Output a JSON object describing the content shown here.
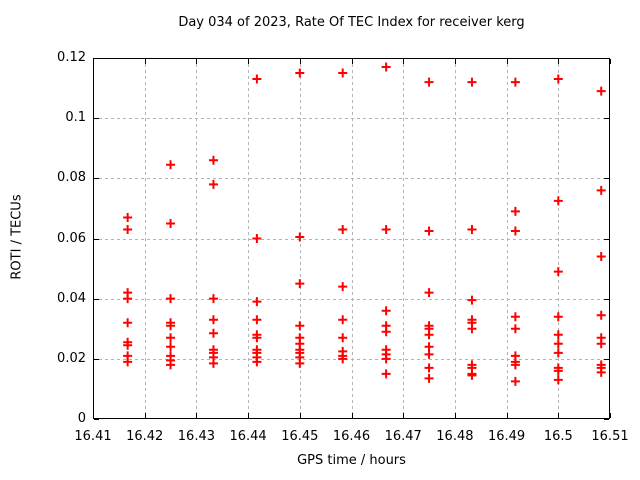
{
  "chart_data": {
    "type": "scatter",
    "title": "Day 034 of 2023, Rate Of TEC Index for receiver kerg",
    "xlabel": "GPS time / hours",
    "ylabel": "ROTI / TECUs",
    "xlim": [
      16.41,
      16.51
    ],
    "ylim": [
      0,
      0.12
    ],
    "xticks": [
      16.41,
      16.42,
      16.43,
      16.44,
      16.45,
      16.46,
      16.47,
      16.48,
      16.49,
      16.5,
      16.51
    ],
    "xtick_labels": [
      "16.41",
      "16.42",
      "16.43",
      "16.44",
      "16.45",
      "16.46",
      "16.47",
      "16.48",
      "16.49",
      "16.5",
      "16.51"
    ],
    "yticks": [
      0,
      0.02,
      0.04,
      0.06,
      0.08,
      0.1,
      0.12
    ],
    "ytick_labels": [
      "0",
      "0.02",
      "0.04",
      "0.06",
      "0.08",
      "0.1",
      "0.12"
    ],
    "grid": true,
    "legend": false,
    "marker": {
      "shape": "plus",
      "color": "#ff0000",
      "size": 9
    },
    "series": [
      {
        "name": "ROTI",
        "points": [
          {
            "x": 16.4167,
            "ys": [
              0.067,
              0.063,
              0.042,
              0.04,
              0.032,
              0.0255,
              0.0245,
              0.021,
              0.019
            ]
          },
          {
            "x": 16.425,
            "ys": [
              0.0845,
              0.065,
              0.04,
              0.032,
              0.031,
              0.027,
              0.024,
              0.021,
              0.0195,
              0.018
            ]
          },
          {
            "x": 16.4333,
            "ys": [
              0.086,
              0.078,
              0.04,
              0.033,
              0.0285,
              0.023,
              0.022,
              0.0205,
              0.0185
            ]
          },
          {
            "x": 16.4417,
            "ys": [
              0.113,
              0.06,
              0.039,
              0.033,
              0.028,
              0.027,
              0.023,
              0.022,
              0.0205,
              0.019
            ]
          },
          {
            "x": 16.45,
            "ys": [
              0.115,
              0.0605,
              0.045,
              0.031,
              0.027,
              0.025,
              0.023,
              0.022,
              0.0205,
              0.0185
            ]
          },
          {
            "x": 16.4583,
            "ys": [
              0.115,
              0.063,
              0.044,
              0.033,
              0.027,
              0.0225,
              0.021,
              0.02
            ]
          },
          {
            "x": 16.4667,
            "ys": [
              0.117,
              0.063,
              0.036,
              0.031,
              0.029,
              0.023,
              0.0215,
              0.02,
              0.015
            ]
          },
          {
            "x": 16.475,
            "ys": [
              0.112,
              0.0625,
              0.042,
              0.031,
              0.03,
              0.028,
              0.024,
              0.0215,
              0.017,
              0.0135
            ]
          },
          {
            "x": 16.4833,
            "ys": [
              0.112,
              0.063,
              0.0395,
              0.033,
              0.032,
              0.03,
              0.018,
              0.017,
              0.015,
              0.0145
            ]
          },
          {
            "x": 16.4917,
            "ys": [
              0.112,
              0.069,
              0.0625,
              0.034,
              0.03,
              0.021,
              0.019,
              0.018,
              0.0125
            ]
          },
          {
            "x": 16.5,
            "ys": [
              0.113,
              0.0725,
              0.049,
              0.034,
              0.028,
              0.025,
              0.022,
              0.017,
              0.016,
              0.013
            ]
          },
          {
            "x": 16.5083,
            "ys": [
              0.109,
              0.076,
              0.054,
              0.0345,
              0.027,
              0.025,
              0.018,
              0.017,
              0.0155
            ]
          }
        ]
      }
    ]
  }
}
